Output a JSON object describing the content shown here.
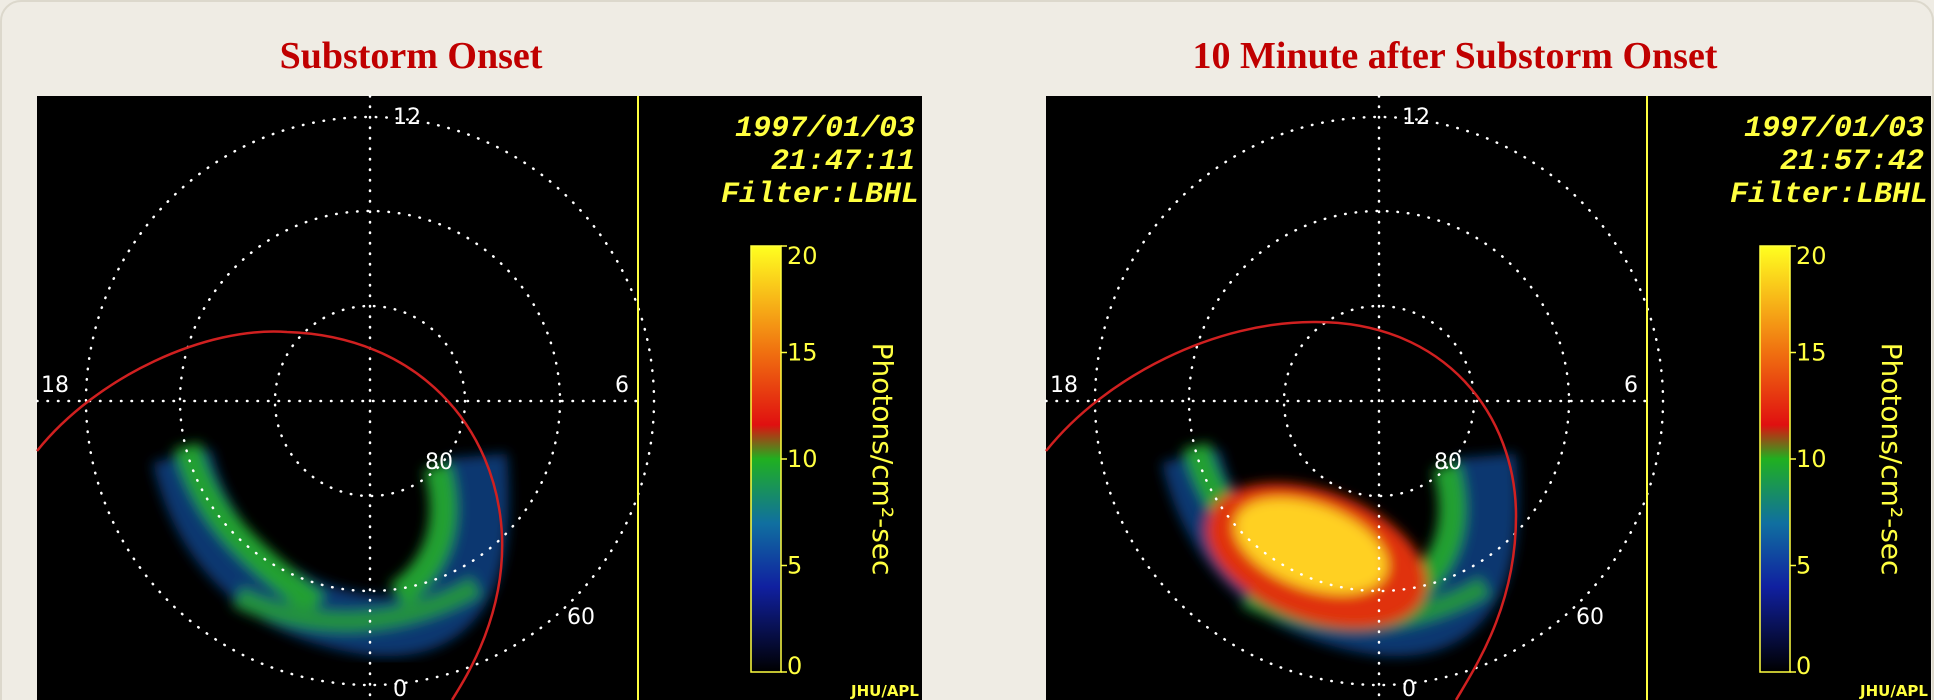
{
  "panels": [
    {
      "title": "Substorm Onset",
      "date": "1997/01/03",
      "time": "21:47:11",
      "filter": "Filter:LBHL",
      "grid_labels": {
        "top": "12",
        "left": "18",
        "right": "6",
        "bottom": "0",
        "inner": "80",
        "outer": "60"
      },
      "colorbar": {
        "ticks": [
          0,
          5,
          10,
          15,
          20
        ],
        "label": "Photons/cm²-sec"
      },
      "credit": "JHU/APL"
    },
    {
      "title": "10 Minute after Substorm Onset",
      "date": "1997/01/03",
      "time": "21:57:42",
      "filter": "Filter:LBHL",
      "grid_labels": {
        "top": "12",
        "left": "18",
        "right": "6",
        "bottom": "0",
        "inner": "80",
        "outer": "60"
      },
      "colorbar": {
        "ticks": [
          0,
          5,
          10,
          15,
          20
        ],
        "label": "Photons/cm²-sec"
      },
      "credit": "JHU/APL"
    }
  ]
}
